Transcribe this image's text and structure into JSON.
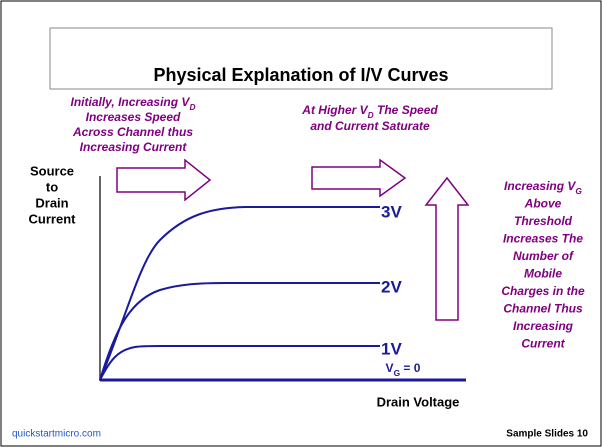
{
  "title": "Physical Explanation of I/V Curves",
  "left_note": [
    {
      "text": "Initially, Increasing V",
      "sub": "D"
    },
    {
      "text": "Increases Speed"
    },
    {
      "text": "Across Channel thus"
    },
    {
      "text": "Increasing Current"
    }
  ],
  "middle_note": [
    {
      "text": "At Higher V",
      "sub": "D",
      "tail": " The Speed"
    },
    {
      "text": "and Current Saturate"
    }
  ],
  "right_note": [
    {
      "text": "Increasing V",
      "sub": "G"
    },
    {
      "text": "Above"
    },
    {
      "text": "Threshold"
    },
    {
      "text": "Increases The"
    },
    {
      "text": "Number of"
    },
    {
      "text": "Mobile"
    },
    {
      "text": "Charges in the"
    },
    {
      "text": "Channel Thus"
    },
    {
      "text": "Increasing"
    },
    {
      "text": "Current"
    }
  ],
  "y_axis_label": [
    "Source",
    "to",
    "Drain",
    "Current"
  ],
  "x_axis_label": "Drain Voltage",
  "curve_labels": [
    "3V",
    "2V",
    "1V"
  ],
  "zero_label": {
    "text": "V",
    "sub": "G",
    "tail": " = 0"
  },
  "footer": {
    "left": "quickstartmicro.com",
    "right": "Sample Slides 10"
  }
}
